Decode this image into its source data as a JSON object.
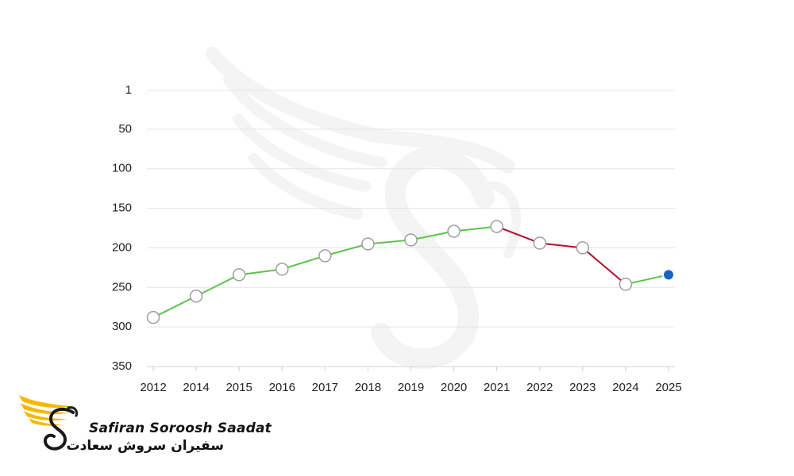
{
  "brand": {
    "name_en": "Safiran Soroosh Saadat",
    "name_fa": "سفیران سروش سعادت"
  },
  "colors": {
    "rising": "#5cc34a",
    "falling": "#b3112b",
    "latest_point": "#1565c0",
    "point_fill": "#ffffff",
    "point_stroke": "#9e9e9e",
    "logo_gold": "#f5b800"
  },
  "chart_data": {
    "type": "line",
    "categories": [
      "2012",
      "2014",
      "2015",
      "2016",
      "2017",
      "2018",
      "2019",
      "2020",
      "2021",
      "2022",
      "2023",
      "2024",
      "2025"
    ],
    "values": [
      288,
      261,
      234,
      227,
      210,
      195,
      190,
      179,
      173,
      194,
      200,
      246,
      234
    ],
    "y_ticks": [
      1,
      50,
      100,
      150,
      200,
      250,
      300,
      350
    ],
    "ylim": [
      1,
      350
    ],
    "y_inverted": true,
    "segment_colors": [
      "rising",
      "rising",
      "rising",
      "rising",
      "rising",
      "rising",
      "rising",
      "rising",
      "falling",
      "falling",
      "falling",
      "rising"
    ],
    "highlight_last_point": true,
    "grid": true,
    "legend": "none",
    "title": "",
    "xlabel": "",
    "ylabel": ""
  }
}
